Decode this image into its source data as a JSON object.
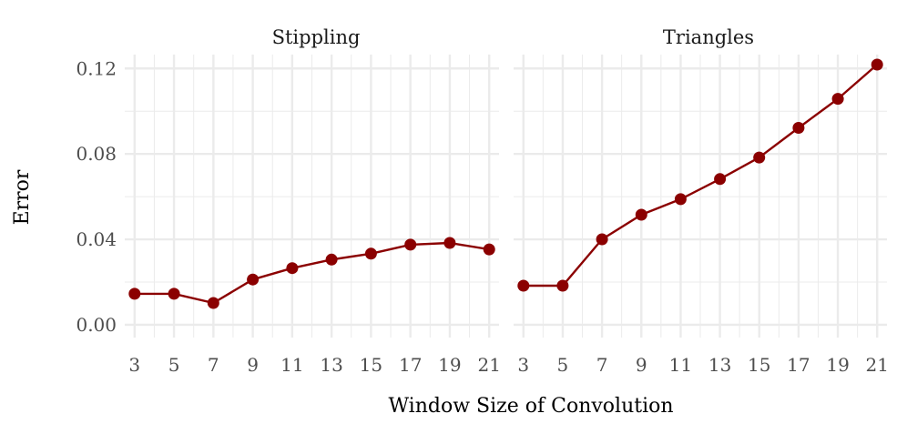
{
  "chart_data": {
    "type": "line",
    "xlabel": "Window Size of Convolution",
    "ylabel": "Error",
    "x": [
      3,
      5,
      7,
      9,
      11,
      13,
      15,
      17,
      19,
      21
    ],
    "x_ticks": [
      "3",
      "5",
      "7",
      "9",
      "11",
      "13",
      "15",
      "17",
      "19",
      "21"
    ],
    "xlim": [
      2.5,
      21.5
    ],
    "y_ticks": [
      "0.00",
      "0.04",
      "0.08",
      "0.12"
    ],
    "y_tick_values": [
      0,
      0.04,
      0.08,
      0.12
    ],
    "ylim": [
      -0.006,
      0.1265
    ],
    "grid": true,
    "color": "#8B0000",
    "panels": [
      {
        "title": "Stippling",
        "values": [
          0.0145,
          0.0145,
          0.0102,
          0.0212,
          0.0265,
          0.0305,
          0.0333,
          0.0375,
          0.0383,
          0.0353
        ]
      },
      {
        "title": "Triangles",
        "values": [
          0.0183,
          0.0183,
          0.04,
          0.0515,
          0.0588,
          0.0682,
          0.0783,
          0.0922,
          0.1058,
          0.1218
        ]
      }
    ]
  }
}
